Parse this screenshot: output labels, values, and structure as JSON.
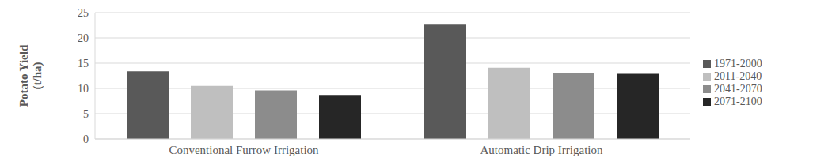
{
  "chart_data": {
    "type": "bar",
    "categories": [
      "Conventional Furrow Irrigation",
      "Automatic Drip Irrigation"
    ],
    "series": [
      {
        "name": "1971-2000",
        "color": "#595959",
        "values": [
          13.4,
          22.6
        ]
      },
      {
        "name": "2011-2040",
        "color": "#bfbfbf",
        "values": [
          10.5,
          14.1
        ]
      },
      {
        "name": "2041-2070",
        "color": "#8c8c8c",
        "values": [
          9.6,
          13.1
        ]
      },
      {
        "name": "2071-2100",
        "color": "#262626",
        "values": [
          8.7,
          12.9
        ]
      }
    ],
    "y_label": "Potato Yield (t/ha)",
    "ylim": [
      0,
      25
    ],
    "yticks": [
      0,
      5,
      10,
      15,
      20,
      25
    ],
    "grid": true,
    "legend": "right"
  }
}
